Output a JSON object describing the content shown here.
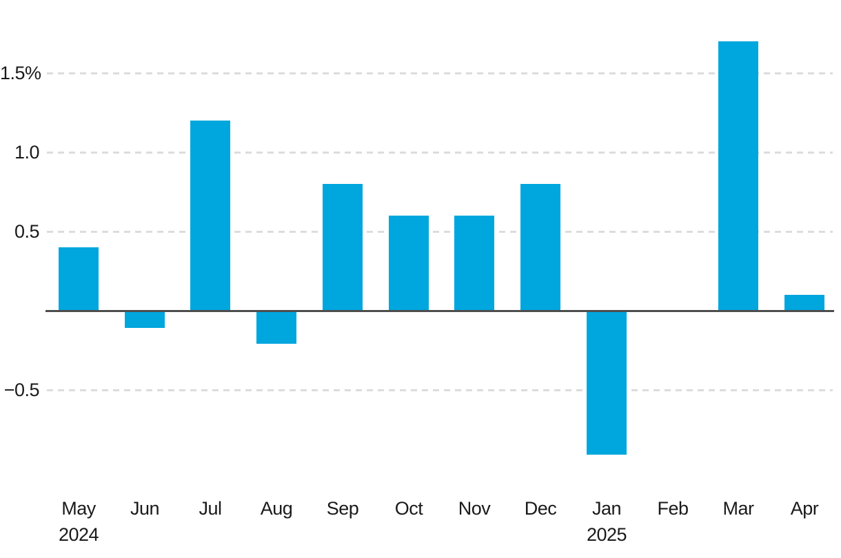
{
  "chart_data": {
    "type": "bar",
    "categories": [
      "May",
      "Jun",
      "Jul",
      "Aug",
      "Sep",
      "Oct",
      "Nov",
      "Dec",
      "Jan",
      "Feb",
      "Mar",
      "Apr"
    ],
    "category_sublabels": [
      "2024",
      "",
      "",
      "",
      "",
      "",
      "",
      "",
      "2025",
      "",
      "",
      ""
    ],
    "values": [
      0.4,
      -0.1,
      1.2,
      -0.2,
      0.8,
      0.6,
      0.6,
      0.8,
      -0.9,
      0,
      1.7,
      0.1
    ],
    "title": "",
    "xlabel": "",
    "ylabel": "",
    "unit": "%",
    "yticks": [
      {
        "value": 1.5,
        "label": "1.5%"
      },
      {
        "value": 1.0,
        "label": "1.0"
      },
      {
        "value": 0.5,
        "label": "0.5"
      },
      {
        "value": -0.5,
        "label": "−0.5"
      }
    ],
    "ylim": [
      -1.05,
      1.95
    ],
    "grid": "horizontal-dashed",
    "legend": "none",
    "colors": {
      "bar": "#00a6de",
      "axis_line": "#4d4d4d",
      "gridline": "#dcdcdc",
      "text": "#1a1a1a"
    }
  }
}
